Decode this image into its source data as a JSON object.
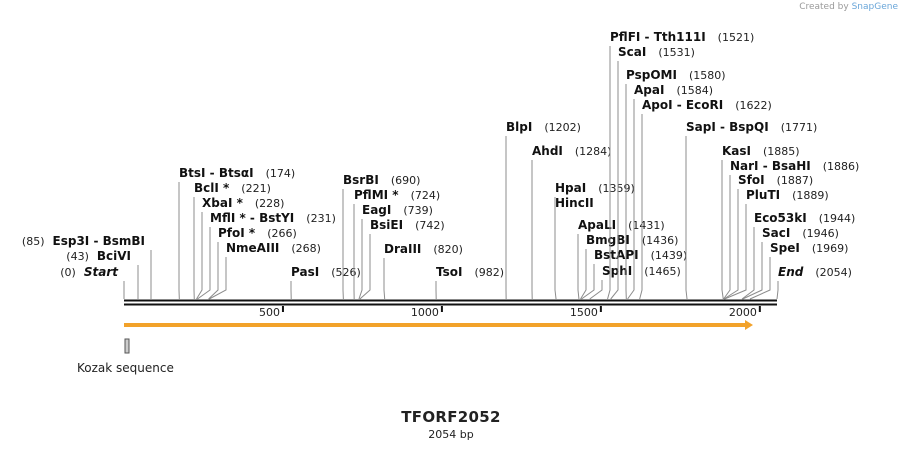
{
  "watermark": {
    "prefix": "Created by",
    "brand": "SnapGene"
  },
  "plasmid": {
    "name": "TFORF2052",
    "length_label": "2054 bp",
    "length_bp": 2054
  },
  "axis": {
    "ticks": [
      500,
      1000,
      1500,
      2000
    ]
  },
  "feature": {
    "name": "Kozak sequence",
    "start": 1,
    "end": 6
  },
  "orf": {
    "start": 1,
    "end": 2054,
    "color": "#f2a22a"
  },
  "sites": [
    {
      "name": "Start",
      "pos": "(0)",
      "bp": 0,
      "italic": true
    },
    {
      "name": "BciVI",
      "pos": "(43)",
      "bp": 43
    },
    {
      "name": "Esp3I - BsmBI",
      "pos": "(85)",
      "bp": 85
    },
    {
      "name": "End",
      "pos": "(2054)",
      "bp": 2054,
      "italic": true
    },
    {
      "name": "BtsI - BtsαI",
      "pos": "(174)",
      "bp": 174
    },
    {
      "name": "BclI *",
      "pos": "(221)",
      "bp": 221
    },
    {
      "name": "XbaI *",
      "pos": "(228)",
      "bp": 228
    },
    {
      "name": "MflI * - BstYI",
      "pos": "(231)",
      "bp": 231
    },
    {
      "name": "PfoI *",
      "pos": "(266)",
      "bp": 266
    },
    {
      "name": "NmeAIII",
      "pos": "(268)",
      "bp": 268
    },
    {
      "name": "PasI",
      "pos": "(526)",
      "bp": 526
    },
    {
      "name": "BsrBI",
      "pos": "(690)",
      "bp": 690
    },
    {
      "name": "PflMI *",
      "pos": "(724)",
      "bp": 724
    },
    {
      "name": "EagI",
      "pos": "(739)",
      "bp": 739
    },
    {
      "name": "BsiEI",
      "pos": "(742)",
      "bp": 742
    },
    {
      "name": "DraIII",
      "pos": "(820)",
      "bp": 820
    },
    {
      "name": "TsoI",
      "pos": "(982)",
      "bp": 982
    },
    {
      "name": "BlpI",
      "pos": "(1202)",
      "bp": 1202
    },
    {
      "name": "AhdI",
      "pos": "(1284)",
      "bp": 1284
    },
    {
      "name": "HpaI",
      "pos": "(1359)",
      "bp": 1359
    },
    {
      "name": "HincII",
      "pos": "",
      "bp": 1359
    },
    {
      "name": "ApaLI",
      "pos": "(1431)",
      "bp": 1431
    },
    {
      "name": "BmgBI",
      "pos": "(1436)",
      "bp": 1436
    },
    {
      "name": "BstAPI",
      "pos": "(1439)",
      "bp": 1439
    },
    {
      "name": "SphI",
      "pos": "(1465)",
      "bp": 1465
    },
    {
      "name": "PflFI - Tth111I",
      "pos": "(1521)",
      "bp": 1521
    },
    {
      "name": "ScaI",
      "pos": "(1531)",
      "bp": 1531
    },
    {
      "name": "PspOMI",
      "pos": "(1580)",
      "bp": 1580
    },
    {
      "name": "ApaI",
      "pos": "(1584)",
      "bp": 1584
    },
    {
      "name": "ApoI - EcoRI",
      "pos": "(1622)",
      "bp": 1622
    },
    {
      "name": "SapI - BspQI",
      "pos": "(1771)",
      "bp": 1771
    },
    {
      "name": "KasI",
      "pos": "(1885)",
      "bp": 1885
    },
    {
      "name": "NarI - BsaHI",
      "pos": "(1886)",
      "bp": 1886
    },
    {
      "name": "SfoI",
      "pos": "(1887)",
      "bp": 1887
    },
    {
      "name": "PluTI",
      "pos": "(1889)",
      "bp": 1889
    },
    {
      "name": "Eco53kI",
      "pos": "(1944)",
      "bp": 1944
    },
    {
      "name": "SacI",
      "pos": "(1946)",
      "bp": 1946
    },
    {
      "name": "SpeI",
      "pos": "(1969)",
      "bp": 1969
    }
  ]
}
